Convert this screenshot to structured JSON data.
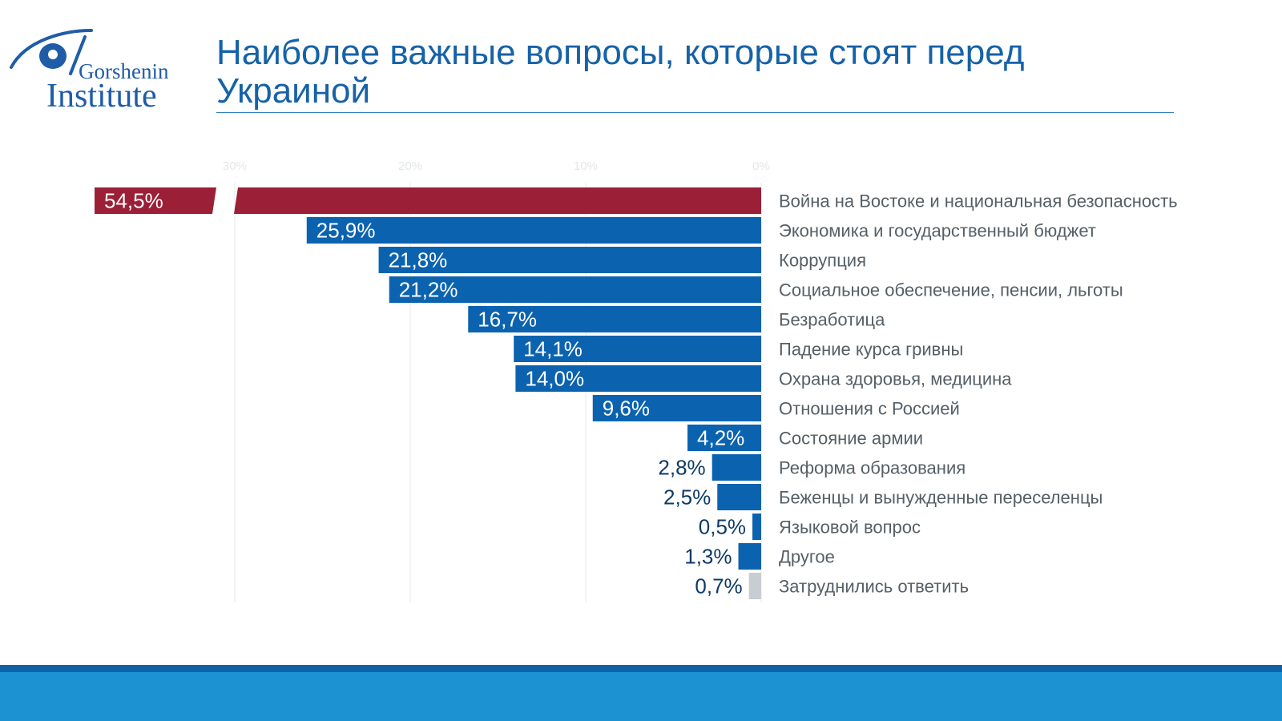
{
  "header": {
    "title": "Наиболее важные вопросы, которые стоят перед Украиной",
    "logo_line1": "Gorshenin",
    "logo_line2": "Institute"
  },
  "colors": {
    "accent_red": "#9b1f36",
    "bar_blue": "#0b63b0",
    "bar_grey": "#c7cdd2",
    "label_grey": "#555f66",
    "value_dark": "#0d3b66",
    "brand_blue": "#1662a8",
    "footer_blue": "#1c92d2",
    "footer_dark": "#0d62a8"
  },
  "chart_data": {
    "type": "bar",
    "orientation": "horizontal",
    "direction": "right-to-left",
    "xlim": [
      0,
      30
    ],
    "x_ticks": [
      "30%",
      "20%",
      "10%",
      "0%"
    ],
    "grid": true,
    "axis_break": true,
    "categories": [
      "Война на Востоке и национальная безопасность",
      "Экономика и государственный бюджет",
      "Коррупция",
      "Социальное обеспечение, пенсии, льготы",
      "Безработица",
      "Падение курса гривны",
      "Охрана здоровья, медицина",
      "Отношения с Россией",
      "Состояние армии",
      "Реформа образования",
      "Беженцы и вынужденные переселенцы",
      "Языковой вопрос",
      "Другое",
      "Затруднились ответить"
    ],
    "values": [
      54.5,
      25.9,
      21.8,
      21.2,
      16.7,
      14.1,
      14.0,
      9.6,
      4.2,
      2.8,
      2.5,
      0.5,
      1.3,
      0.7
    ],
    "value_labels": [
      "54,5%",
      "25,9%",
      "21,8%",
      "21,2%",
      "16,7%",
      "14,1%",
      "14,0%",
      "9,6%",
      "4,2%",
      "2,8%",
      "2,5%",
      "0,5%",
      "1,3%",
      "0,7%"
    ],
    "bar_colors": [
      "accent_red",
      "bar_blue",
      "bar_blue",
      "bar_blue",
      "bar_blue",
      "bar_blue",
      "bar_blue",
      "bar_blue",
      "bar_blue",
      "bar_blue",
      "bar_blue",
      "bar_blue",
      "bar_blue",
      "bar_grey"
    ]
  }
}
